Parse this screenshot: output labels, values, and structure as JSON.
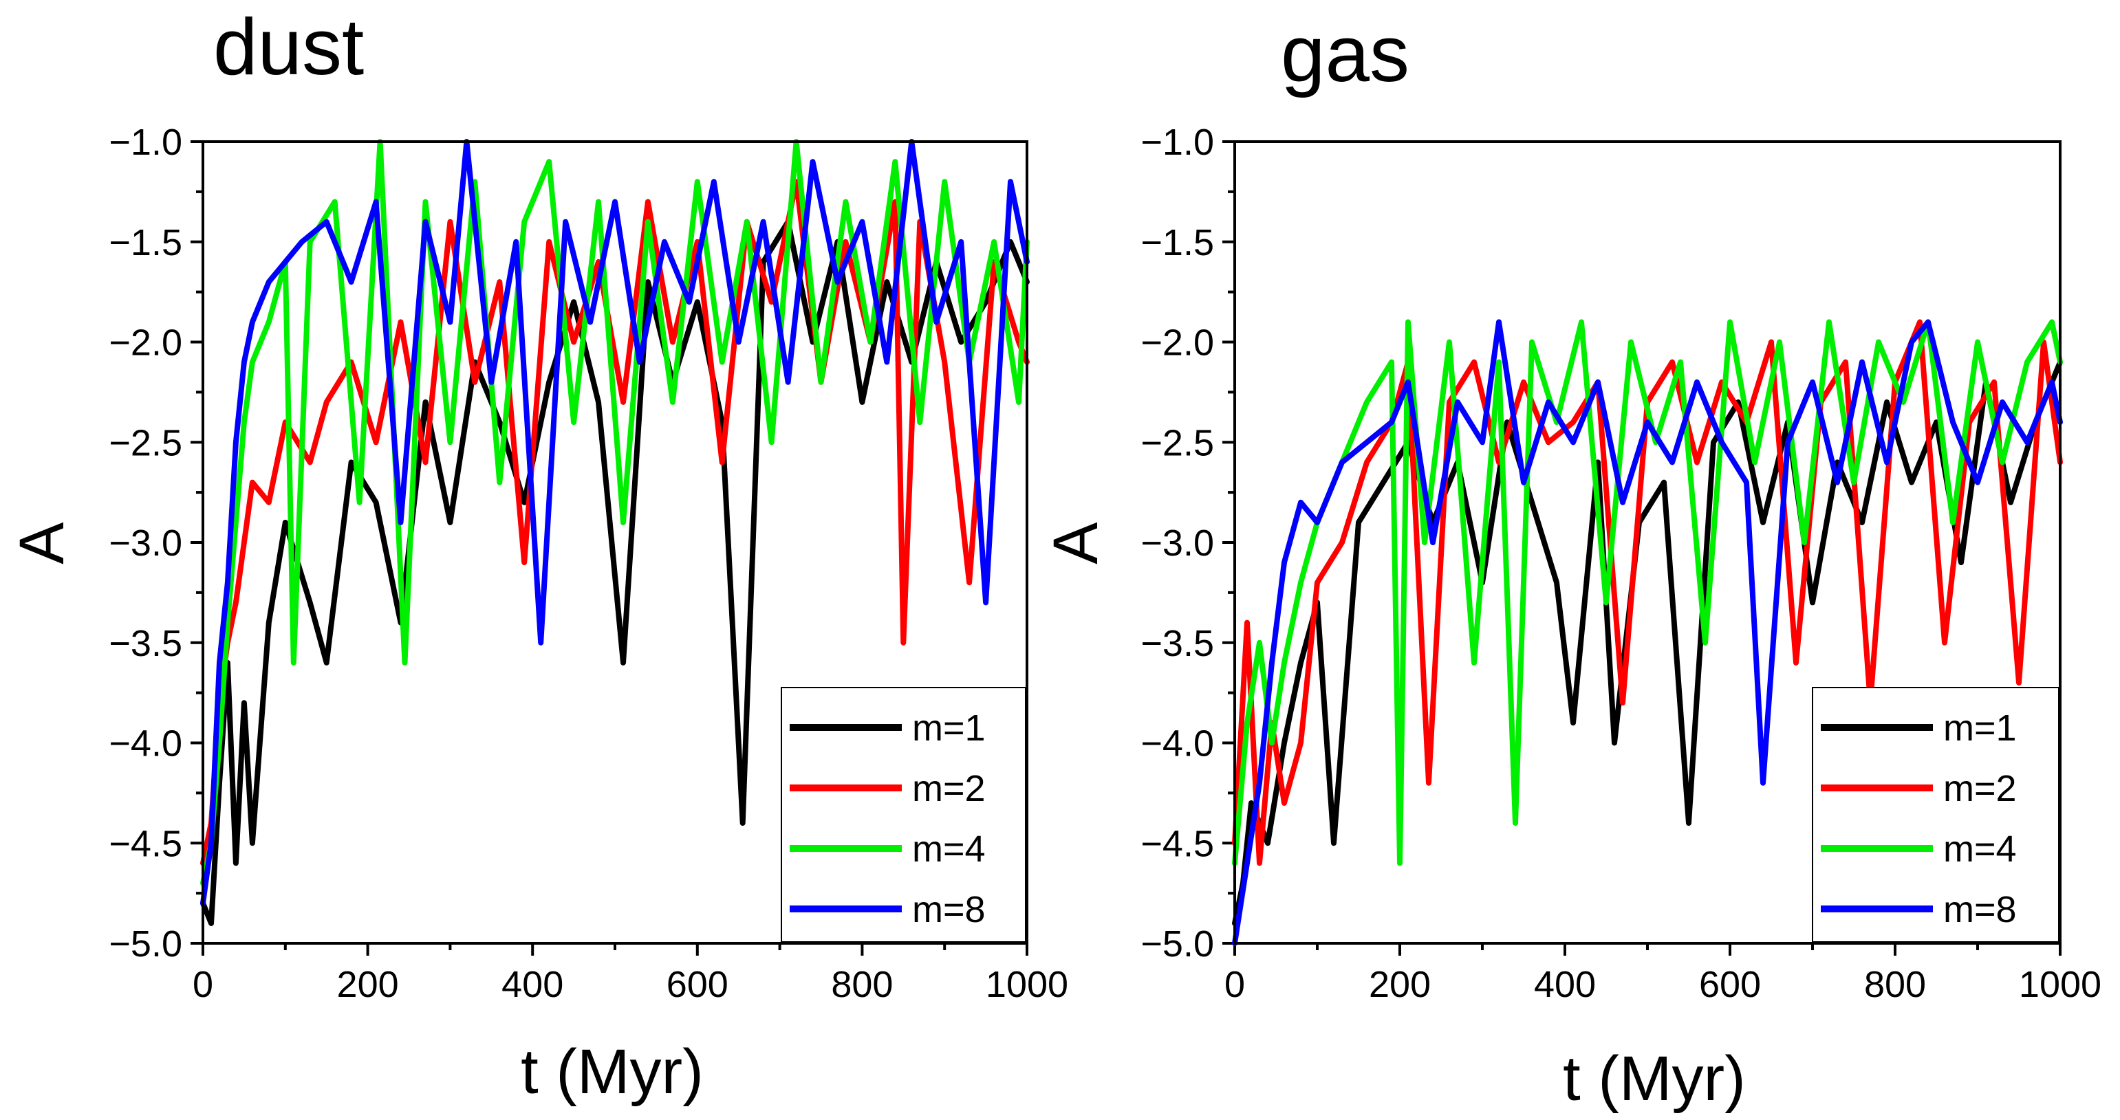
{
  "chart_data": [
    {
      "type": "line",
      "title": "dust",
      "xlabel": "t (Myr)",
      "ylabel": "A",
      "xlim": [
        0,
        1000
      ],
      "ylim": [
        -5.0,
        -1.0
      ],
      "x_ticks": [
        0,
        200,
        400,
        600,
        800,
        1000
      ],
      "x_tick_labels": [
        "0",
        "200",
        "400",
        "600",
        "800",
        "1000"
      ],
      "y_ticks": [
        -1.0,
        -1.5,
        -2.0,
        -2.5,
        -3.0,
        -3.5,
        -4.0,
        -4.5,
        -5.0
      ],
      "y_tick_labels": [
        "−1.0",
        "−1.5",
        "−2.0",
        "−2.5",
        "−3.0",
        "−3.5",
        "−4.0",
        "−4.5",
        "−5.0"
      ],
      "legend_position": "bottom-right",
      "series": [
        {
          "name": "m=1",
          "color": "#000000",
          "x": [
            0,
            10,
            20,
            30,
            40,
            50,
            60,
            80,
            100,
            130,
            150,
            180,
            210,
            240,
            270,
            300,
            330,
            360,
            390,
            420,
            450,
            480,
            510,
            540,
            570,
            600,
            630,
            655,
            680,
            710,
            740,
            770,
            800,
            830,
            860,
            890,
            920,
            950,
            980,
            1000
          ],
          "values": [
            -4.8,
            -4.9,
            -4.2,
            -3.6,
            -4.6,
            -3.8,
            -4.5,
            -3.4,
            -2.9,
            -3.3,
            -3.6,
            -2.6,
            -2.8,
            -3.4,
            -2.3,
            -2.9,
            -2.1,
            -2.4,
            -2.8,
            -2.2,
            -1.8,
            -2.3,
            -3.6,
            -1.7,
            -2.2,
            -1.8,
            -2.4,
            -4.4,
            -1.6,
            -1.4,
            -2.0,
            -1.5,
            -2.3,
            -1.7,
            -2.1,
            -1.6,
            -2.0,
            -1.8,
            -1.5,
            -1.7
          ]
        },
        {
          "name": "m=2",
          "color": "#ff0000",
          "x": [
            0,
            10,
            20,
            30,
            40,
            50,
            60,
            80,
            100,
            130,
            150,
            180,
            210,
            240,
            270,
            300,
            330,
            360,
            390,
            420,
            450,
            480,
            510,
            540,
            570,
            600,
            630,
            660,
            690,
            720,
            750,
            780,
            810,
            840,
            850,
            870,
            900,
            930,
            960,
            990,
            1000
          ],
          "values": [
            -4.6,
            -4.4,
            -3.8,
            -3.5,
            -3.3,
            -3.0,
            -2.7,
            -2.8,
            -2.4,
            -2.6,
            -2.3,
            -2.1,
            -2.5,
            -1.9,
            -2.6,
            -1.4,
            -2.2,
            -1.7,
            -3.1,
            -1.5,
            -2.0,
            -1.6,
            -2.3,
            -1.3,
            -2.0,
            -1.5,
            -2.6,
            -1.4,
            -1.8,
            -1.2,
            -2.2,
            -1.5,
            -2.0,
            -1.3,
            -3.5,
            -1.4,
            -2.1,
            -3.2,
            -1.6,
            -2.0,
            -2.1
          ]
        },
        {
          "name": "m=4",
          "color": "#00ee00",
          "x": [
            0,
            10,
            20,
            30,
            40,
            50,
            60,
            80,
            100,
            110,
            130,
            160,
            190,
            215,
            245,
            270,
            300,
            330,
            360,
            390,
            420,
            450,
            480,
            510,
            540,
            570,
            600,
            630,
            660,
            690,
            720,
            750,
            780,
            810,
            840,
            870,
            900,
            930,
            960,
            990,
            1000
          ],
          "values": [
            -4.7,
            -4.5,
            -4.0,
            -3.4,
            -2.9,
            -2.4,
            -2.1,
            -1.9,
            -1.6,
            -3.6,
            -1.5,
            -1.3,
            -2.8,
            -1.0,
            -3.6,
            -1.3,
            -2.5,
            -1.2,
            -2.7,
            -1.4,
            -1.1,
            -2.4,
            -1.3,
            -2.9,
            -1.4,
            -2.3,
            -1.2,
            -2.1,
            -1.4,
            -2.5,
            -1.0,
            -2.2,
            -1.3,
            -2.0,
            -1.1,
            -2.4,
            -1.2,
            -2.1,
            -1.5,
            -2.3,
            -1.5
          ]
        },
        {
          "name": "m=8",
          "color": "#0000ff",
          "x": [
            0,
            10,
            20,
            30,
            40,
            50,
            60,
            80,
            100,
            120,
            150,
            180,
            210,
            240,
            270,
            300,
            320,
            350,
            380,
            410,
            440,
            470,
            500,
            530,
            560,
            590,
            620,
            650,
            680,
            710,
            740,
            770,
            800,
            830,
            860,
            890,
            920,
            950,
            980,
            1000
          ],
          "values": [
            -4.8,
            -4.5,
            -3.6,
            -3.2,
            -2.5,
            -2.1,
            -1.9,
            -1.7,
            -1.6,
            -1.5,
            -1.4,
            -1.7,
            -1.3,
            -2.9,
            -1.4,
            -1.9,
            -1.0,
            -2.2,
            -1.5,
            -3.5,
            -1.4,
            -1.9,
            -1.3,
            -2.1,
            -1.5,
            -1.8,
            -1.2,
            -2.0,
            -1.4,
            -2.2,
            -1.1,
            -1.7,
            -1.4,
            -2.1,
            -1.0,
            -1.9,
            -1.5,
            -3.3,
            -1.2,
            -1.6
          ]
        }
      ]
    },
    {
      "type": "line",
      "title": "gas",
      "xlabel": "t (Myr)",
      "ylabel": "A",
      "xlim": [
        0,
        1000
      ],
      "ylim": [
        -5.0,
        -1.0
      ],
      "x_ticks": [
        0,
        200,
        400,
        600,
        800,
        1000
      ],
      "x_tick_labels": [
        "0",
        "200",
        "400",
        "600",
        "800",
        "1000"
      ],
      "y_ticks": [
        -1.0,
        -1.5,
        -2.0,
        -2.5,
        -3.0,
        -3.5,
        -4.0,
        -4.5,
        -5.0
      ],
      "y_tick_labels": [
        "−1.0",
        "−1.5",
        "−2.0",
        "−2.5",
        "−3.0",
        "−3.5",
        "−4.0",
        "−4.5",
        "−5.0"
      ],
      "legend_position": "bottom-right",
      "series": [
        {
          "name": "m=1",
          "color": "#000000",
          "x": [
            0,
            10,
            20,
            40,
            60,
            80,
            100,
            120,
            150,
            180,
            210,
            240,
            270,
            300,
            330,
            360,
            390,
            410,
            440,
            460,
            490,
            520,
            550,
            580,
            610,
            640,
            670,
            700,
            730,
            760,
            790,
            820,
            850,
            880,
            910,
            940,
            970,
            1000
          ],
          "values": [
            -4.9,
            -4.7,
            -4.3,
            -4.5,
            -4.0,
            -3.6,
            -3.3,
            -4.5,
            -2.9,
            -2.7,
            -2.5,
            -2.9,
            -2.6,
            -3.2,
            -2.4,
            -2.8,
            -3.2,
            -3.9,
            -2.6,
            -4.0,
            -2.9,
            -2.7,
            -4.4,
            -2.5,
            -2.3,
            -2.9,
            -2.4,
            -3.3,
            -2.6,
            -2.9,
            -2.3,
            -2.7,
            -2.4,
            -3.1,
            -2.2,
            -2.8,
            -2.4,
            -2.1
          ]
        },
        {
          "name": "m=2",
          "color": "#ff0000",
          "x": [
            0,
            15,
            30,
            45,
            60,
            80,
            100,
            130,
            160,
            190,
            210,
            235,
            260,
            290,
            320,
            350,
            380,
            410,
            440,
            470,
            500,
            530,
            560,
            590,
            620,
            650,
            680,
            710,
            740,
            770,
            800,
            830,
            860,
            890,
            920,
            950,
            980,
            1000
          ],
          "values": [
            -4.5,
            -3.4,
            -4.6,
            -3.9,
            -4.3,
            -4.0,
            -3.2,
            -3.0,
            -2.6,
            -2.4,
            -2.1,
            -4.2,
            -2.3,
            -2.1,
            -2.6,
            -2.2,
            -2.5,
            -2.4,
            -2.2,
            -3.8,
            -2.3,
            -2.1,
            -2.6,
            -2.2,
            -2.4,
            -2.0,
            -3.6,
            -2.3,
            -2.1,
            -3.8,
            -2.2,
            -1.9,
            -3.5,
            -2.4,
            -2.2,
            -3.7,
            -2.0,
            -2.6
          ]
        },
        {
          "name": "m=4",
          "color": "#00ee00",
          "x": [
            0,
            15,
            30,
            45,
            60,
            80,
            100,
            130,
            160,
            190,
            200,
            210,
            230,
            260,
            290,
            320,
            340,
            360,
            390,
            420,
            450,
            480,
            510,
            540,
            570,
            600,
            630,
            660,
            690,
            720,
            750,
            780,
            810,
            840,
            870,
            900,
            930,
            960,
            990,
            1000
          ],
          "values": [
            -4.6,
            -3.9,
            -3.5,
            -4.0,
            -3.6,
            -3.2,
            -2.9,
            -2.6,
            -2.3,
            -2.1,
            -4.6,
            -1.9,
            -3.0,
            -2.0,
            -3.6,
            -2.1,
            -4.4,
            -2.0,
            -2.4,
            -1.9,
            -3.3,
            -2.0,
            -2.5,
            -2.1,
            -3.5,
            -1.9,
            -2.6,
            -2.0,
            -3.0,
            -1.9,
            -2.7,
            -2.0,
            -2.3,
            -1.9,
            -2.9,
            -2.0,
            -2.6,
            -2.1,
            -1.9,
            -2.1
          ]
        },
        {
          "name": "m=8",
          "color": "#0000ff",
          "x": [
            0,
            15,
            30,
            45,
            60,
            80,
            100,
            130,
            160,
            190,
            210,
            240,
            270,
            300,
            320,
            350,
            380,
            410,
            440,
            470,
            500,
            530,
            560,
            590,
            620,
            640,
            670,
            700,
            730,
            760,
            790,
            820,
            840,
            870,
            900,
            930,
            960,
            990,
            1000
          ],
          "values": [
            -5.0,
            -4.6,
            -4.2,
            -3.6,
            -3.1,
            -2.8,
            -2.9,
            -2.6,
            -2.5,
            -2.4,
            -2.2,
            -3.0,
            -2.3,
            -2.5,
            -1.9,
            -2.7,
            -2.3,
            -2.5,
            -2.2,
            -2.8,
            -2.4,
            -2.6,
            -2.2,
            -2.5,
            -2.7,
            -4.2,
            -2.5,
            -2.2,
            -2.7,
            -2.1,
            -2.6,
            -2.0,
            -1.9,
            -2.4,
            -2.7,
            -2.3,
            -2.5,
            -2.2,
            -2.4
          ]
        }
      ]
    }
  ]
}
